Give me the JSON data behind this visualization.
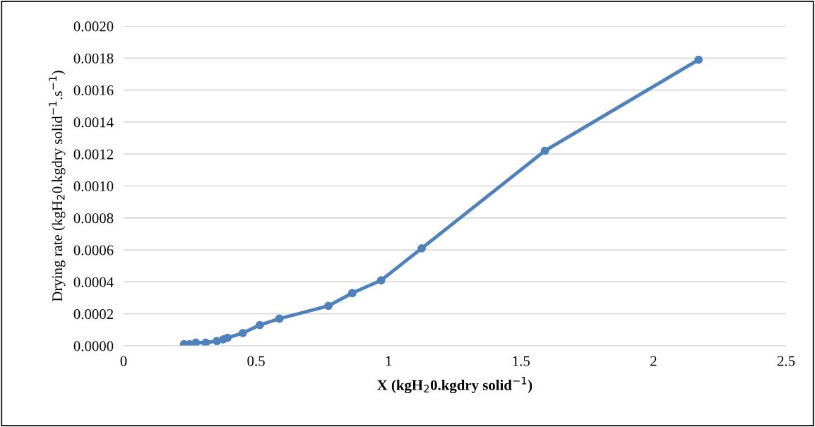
{
  "chart_data": {
    "type": "line",
    "xlabel": "X (kgH$_{2}$0.kgdry solid$^{−1}$)",
    "ylabel": "Drying rate (kgH$_{2}$0.kgdry solid$^{−1}$.s$^{−1}$)",
    "x": [
      0.228,
      0.249,
      0.273,
      0.31,
      0.352,
      0.376,
      0.392,
      0.45,
      0.514,
      0.588,
      0.773,
      0.863,
      0.972,
      1.125,
      1.59,
      2.17
    ],
    "series": [
      {
        "color": "#4f81bd",
        "values": [
          1e-05,
          1e-05,
          2e-05,
          2e-05,
          3e-05,
          4e-05,
          5e-05,
          8e-05,
          0.00013,
          0.00017,
          0.00025,
          0.00033,
          0.00041,
          0.00061,
          0.00122,
          0.00179
        ]
      }
    ],
    "xlim": [
      0,
      2.5
    ],
    "xticks": [
      0,
      {
        "value": 0.5,
        "label": "0.5"
      },
      {
        "value": 1,
        "label": "1"
      },
      {
        "value": 1.5,
        "label": "1.5"
      },
      {
        "value": 2,
        "label": "2"
      },
      {
        "value": 2.5,
        "label": "2.5"
      }
    ],
    "ylim": [
      0,
      0.002
    ],
    "yticks": [
      {
        "value": 0,
        "label": "0.0000"
      },
      {
        "value": 0.0002,
        "label": "0.0002"
      },
      {
        "value": 0.0004,
        "label": "0.0004"
      },
      {
        "value": 0.0006,
        "label": "0.0006"
      },
      {
        "value": 0.0008,
        "label": "0.0008"
      },
      {
        "value": 0.001,
        "label": "0.0010"
      },
      {
        "value": 0.0012,
        "label": "0.0012"
      },
      {
        "value": 0.0014,
        "label": "0.0014"
      },
      {
        "value": 0.0016,
        "label": "0.0016"
      },
      {
        "value": 0.0018,
        "label": "0.0018"
      },
      {
        "value": 0.002,
        "label": "0.0020"
      }
    ],
    "grid": "y",
    "marker": "circle",
    "line_style": "solid",
    "legend": false
  }
}
